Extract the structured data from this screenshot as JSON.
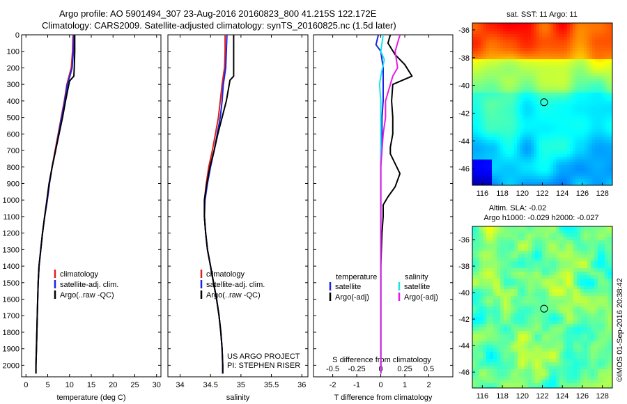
{
  "header": {
    "title_line1": "Argo profile: AO 5901494_307 23-Aug-2016 20160823_800 41.215S 122.172E",
    "title_line2": "Climatology: CARS2009. Satellite-adjusted climatology: synTS_20160825.nc (1.5d later)"
  },
  "colors": {
    "climatology": "#e0201c",
    "satellite": "#1a24e0",
    "argo": "#000000",
    "sat_salinity": "#18e4f0",
    "argo_salinity": "#e81ae8"
  },
  "chart_data": [
    {
      "type": "line",
      "id": "temperature",
      "xlabel": "temperature (deg C)",
      "ylabel": "",
      "xlim": [
        -1,
        31
      ],
      "ylim": [
        2070,
        0
      ],
      "xticks": [
        0,
        5,
        10,
        15,
        20,
        25,
        30
      ],
      "yticks": [
        0,
        100,
        200,
        300,
        400,
        500,
        600,
        700,
        800,
        900,
        1000,
        1100,
        1200,
        1300,
        1400,
        1500,
        1600,
        1700,
        1800,
        1900,
        2000
      ],
      "legend": [
        {
          "label": "climatology",
          "color": "#e0201c"
        },
        {
          "label": "satellite-adj. clim.",
          "color": "#1a24e0"
        },
        {
          "label": "Argo(..raw -QC)",
          "color": "#000000"
        }
      ],
      "series": [
        {
          "name": "climatology",
          "color": "#e0201c",
          "x": [
            10.8,
            10.7,
            10.4,
            9.9,
            9.4,
            8.8,
            8.1,
            7.4,
            6.7,
            6.0,
            5.4,
            4.9,
            4.3,
            3.8,
            3.4,
            3.0,
            2.8,
            2.7,
            2.6,
            2.5,
            2.4,
            2.3,
            2.3
          ],
          "y": [
            0,
            100,
            200,
            250,
            300,
            400,
            500,
            600,
            700,
            800,
            900,
            1000,
            1100,
            1200,
            1300,
            1400,
            1500,
            1600,
            1700,
            1800,
            1900,
            2000,
            2050
          ]
        },
        {
          "name": "satellite-adj. clim.",
          "color": "#1a24e0",
          "x": [
            11.0,
            10.9,
            10.6,
            10.1,
            9.5,
            8.9,
            8.2,
            7.5,
            6.8,
            6.0,
            5.4,
            4.9,
            4.3,
            3.8,
            3.4,
            3.0,
            2.8,
            2.7,
            2.6,
            2.5,
            2.4,
            2.3,
            2.3
          ],
          "y": [
            0,
            100,
            200,
            250,
            300,
            400,
            500,
            600,
            700,
            800,
            900,
            1000,
            1100,
            1200,
            1300,
            1400,
            1500,
            1600,
            1700,
            1800,
            1900,
            2000,
            2050
          ]
        },
        {
          "name": "Argo(..raw -QC)",
          "color": "#000000",
          "x": [
            11.2,
            11.2,
            11.1,
            11.0,
            10.0,
            9.1,
            8.4,
            7.6,
            6.8,
            6.0,
            5.3,
            4.8,
            4.3,
            3.8,
            3.4,
            3.0,
            2.8,
            2.7,
            2.6,
            2.5,
            2.4,
            2.3,
            2.3
          ],
          "y": [
            0,
            100,
            200,
            250,
            280,
            400,
            500,
            600,
            700,
            800,
            900,
            1000,
            1100,
            1200,
            1300,
            1400,
            1500,
            1600,
            1700,
            1800,
            1900,
            2000,
            2050
          ]
        }
      ]
    },
    {
      "type": "line",
      "id": "salinity",
      "xlabel": "salinity",
      "ylabel": "",
      "xlim": [
        33.8,
        36.1
      ],
      "ylim": [
        2070,
        0
      ],
      "xticks": [
        34,
        34.5,
        35,
        35.5,
        36
      ],
      "legend": [
        {
          "label": "climatology",
          "color": "#e0201c"
        },
        {
          "label": "satellite-adj. clim.",
          "color": "#1a24e0"
        },
        {
          "label": "Argo(..raw -QC)",
          "color": "#000000"
        }
      ],
      "annotations": [
        "US ARGO PROJECT",
        "PI: STEPHEN RISER"
      ],
      "series": [
        {
          "name": "climatology",
          "color": "#e0201c",
          "x": [
            34.74,
            34.74,
            34.73,
            34.71,
            34.69,
            34.66,
            34.63,
            34.58,
            34.53,
            34.47,
            34.43,
            34.4,
            34.4,
            34.42,
            34.45,
            34.5,
            34.55,
            34.6,
            34.64,
            34.67,
            34.69,
            34.7,
            34.7
          ],
          "y": [
            0,
            100,
            200,
            250,
            300,
            400,
            500,
            600,
            700,
            800,
            900,
            1000,
            1100,
            1200,
            1300,
            1400,
            1500,
            1600,
            1700,
            1800,
            1900,
            2000,
            2050
          ]
        },
        {
          "name": "satellite-adj. clim.",
          "color": "#1a24e0",
          "x": [
            34.77,
            34.76,
            34.75,
            34.73,
            34.71,
            34.69,
            34.66,
            34.61,
            34.56,
            34.5,
            34.45,
            34.41,
            34.4,
            34.42,
            34.45,
            34.5,
            34.55,
            34.6,
            34.64,
            34.67,
            34.69,
            34.7,
            34.7
          ],
          "y": [
            0,
            100,
            200,
            250,
            300,
            400,
            500,
            600,
            700,
            800,
            900,
            1000,
            1100,
            1200,
            1300,
            1400,
            1500,
            1600,
            1700,
            1800,
            1900,
            2000,
            2050
          ]
        },
        {
          "name": "Argo(..raw -QC)",
          "color": "#000000",
          "x": [
            34.88,
            34.88,
            34.88,
            34.88,
            34.82,
            34.76,
            34.69,
            34.62,
            34.56,
            34.49,
            34.44,
            34.4,
            34.4,
            34.42,
            34.45,
            34.5,
            34.55,
            34.6,
            34.64,
            34.67,
            34.69,
            34.7,
            34.7
          ],
          "y": [
            0,
            100,
            200,
            250,
            275,
            400,
            500,
            600,
            700,
            800,
            900,
            1000,
            1100,
            1200,
            1300,
            1400,
            1500,
            1600,
            1700,
            1800,
            1900,
            2000,
            2050
          ]
        }
      ]
    },
    {
      "type": "line",
      "id": "difference",
      "xlabel": "T difference from climatology",
      "xlabel2": "S difference from climatology",
      "xlim": [
        -2.8,
        3.0
      ],
      "ylim": [
        2070,
        0
      ],
      "xticks": [
        -2,
        -1,
        0,
        1,
        2
      ],
      "xticklabels": [
        "-2",
        "-1",
        "0",
        "1",
        "2"
      ],
      "xticks_s": [
        -2,
        -1,
        0,
        1,
        2
      ],
      "xticklabels_s": [
        "-0.5",
        "-0.25",
        "0",
        "0.25",
        "0.5"
      ],
      "legend_groups": [
        {
          "title": "temperature",
          "items": [
            {
              "label": "satellite",
              "color": "#1a24e0"
            },
            {
              "label": "Argo(-adj)",
              "color": "#000000"
            }
          ]
        },
        {
          "title": "salinity",
          "items": [
            {
              "label": "satellite",
              "color": "#18e4f0"
            },
            {
              "label": "Argo(-adj)",
              "color": "#e81ae8"
            }
          ]
        }
      ],
      "series": [
        {
          "name": "temperature satellite",
          "color": "#1a24e0",
          "x": [
            -0.1,
            -0.2,
            0.0,
            0.1,
            0.1,
            0.1,
            0.05,
            0.05,
            0.0,
            0.0,
            0.0,
            0.0,
            0.0,
            0.0,
            0.0,
            0.0,
            0.0,
            0.0,
            0.0
          ],
          "y": [
            0,
            60,
            100,
            200,
            300,
            400,
            500,
            600,
            700,
            800,
            900,
            1000,
            1200,
            1400,
            1600,
            1800,
            1900,
            2000,
            2050
          ]
        },
        {
          "name": "temperature Argo(-adj)",
          "color": "#000000",
          "x": [
            0.4,
            0.3,
            0.6,
            1.0,
            1.3,
            0.5,
            0.45,
            0.5,
            0.5,
            0.4,
            0.4,
            0.6,
            0.8,
            0.6,
            0.3,
            0.1,
            0.1,
            0.05,
            0.0,
            0.0,
            0.0,
            0.0,
            0.0,
            0.0
          ],
          "y": [
            0,
            50,
            120,
            180,
            250,
            300,
            400,
            500,
            600,
            680,
            720,
            780,
            840,
            920,
            980,
            1030,
            1100,
            1200,
            1400,
            1600,
            1800,
            1900,
            2000,
            2050
          ]
        },
        {
          "name": "salinity satellite",
          "color": "#18e4f0",
          "x": [
            0.1,
            0.0,
            0.15,
            0.0,
            -0.05,
            0.0,
            0.0,
            0.0,
            0.0,
            0.0,
            0.0,
            0.0,
            0.0,
            0.0,
            0.0,
            0.0,
            0.0
          ],
          "y": [
            0,
            100,
            150,
            250,
            300,
            400,
            500,
            600,
            700,
            800,
            900,
            1000,
            1200,
            1400,
            1600,
            1800,
            2050
          ]
        },
        {
          "name": "salinity Argo(-adj)",
          "color": "#e81ae8",
          "x": [
            0.8,
            0.6,
            0.7,
            0.5,
            0.2,
            0.2,
            0.1,
            0.05,
            0.0,
            0.0,
            0.0,
            0.0,
            0.0,
            0.0
          ],
          "y": [
            0,
            100,
            200,
            250,
            400,
            500,
            600,
            700,
            800,
            900,
            1000,
            1200,
            1600,
            2050
          ]
        }
      ]
    },
    {
      "type": "heatmap",
      "id": "sst_map",
      "title": "sat. SST: 11  Argo: 11",
      "xlim": [
        115,
        129
      ],
      "ylim": [
        -47.2,
        -35.5
      ],
      "xticks": [
        116,
        118,
        120,
        122,
        124,
        126,
        128
      ],
      "yticks": [
        -36,
        -38,
        -40,
        -42,
        -44,
        -46
      ],
      "marker": {
        "lon": 122.172,
        "lat": -41.215
      }
    },
    {
      "type": "heatmap",
      "id": "sla_map",
      "title": "Altim. SLA: -0.02",
      "title2": "Argo h1000: -0.029 h2000: -0.027",
      "xlim": [
        115,
        129
      ],
      "ylim": [
        -47.2,
        -35.0
      ],
      "xticks": [
        116,
        118,
        120,
        122,
        124,
        126,
        128
      ],
      "yticks": [
        -36,
        -38,
        -40,
        -42,
        -44,
        -46
      ],
      "marker": {
        "lon": 122.172,
        "lat": -41.215
      }
    }
  ],
  "watermark": "©IMOS 01-Sep-2016 20:38:42"
}
